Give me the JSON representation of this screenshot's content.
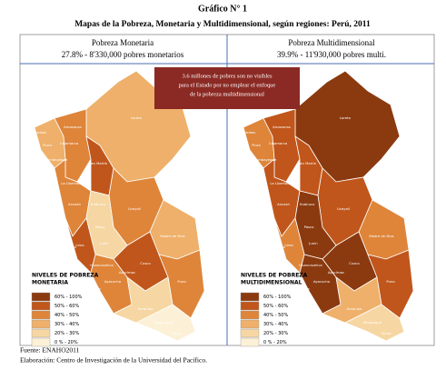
{
  "header": {
    "label": "Gráfico N° 1",
    "title": "Mapas de la Pobreza, Monetaria y Multidimensional, según regiones: Perú, 2011"
  },
  "panels": [
    {
      "title": "Pobreza Monetaria",
      "subtitle": "27.8% - 8'330,000 pobres monetarios",
      "legend_title": [
        "NIVELES DE POBREZA",
        "MONETARIA"
      ]
    },
    {
      "title": "Pobreza Multidimensional",
      "subtitle": "39.9% - 11'930,000 pobres multi.",
      "legend_title": [
        "NIVELES DE POBREZA",
        "MULTIDIMENSIONAL"
      ]
    }
  ],
  "callout": [
    "3.6 millones de pobres son no visibles",
    "para el Estado por no emplear el enfoque",
    "de la pobreza multidimensional"
  ],
  "legend_items": [
    "60% - 100%",
    "50% - 60%",
    "40% - 50%",
    "30% - 40%",
    "20% - 30%",
    "0 % - 20%"
  ],
  "regions": [
    "Tumbes",
    "Piura",
    "Lambayeque",
    "Amazonas",
    "Cajamarca",
    "Loreto",
    "San Martín",
    "La Libertad",
    "Ancash",
    "Huánuco",
    "Ucayali",
    "Pasco",
    "Lima",
    "Callao",
    "Junín",
    "Huancavelica",
    "Ica",
    "Ayacucho",
    "Apurímac",
    "Cusco",
    "Madre de Dios",
    "Puno",
    "Arequipa",
    "Moquegua",
    "Tacna"
  ],
  "footer": {
    "source": "Fuente: ENAHO2011",
    "credit": "Elaboración: Centro de Investigación de la Universidad del Pacífico."
  }
}
